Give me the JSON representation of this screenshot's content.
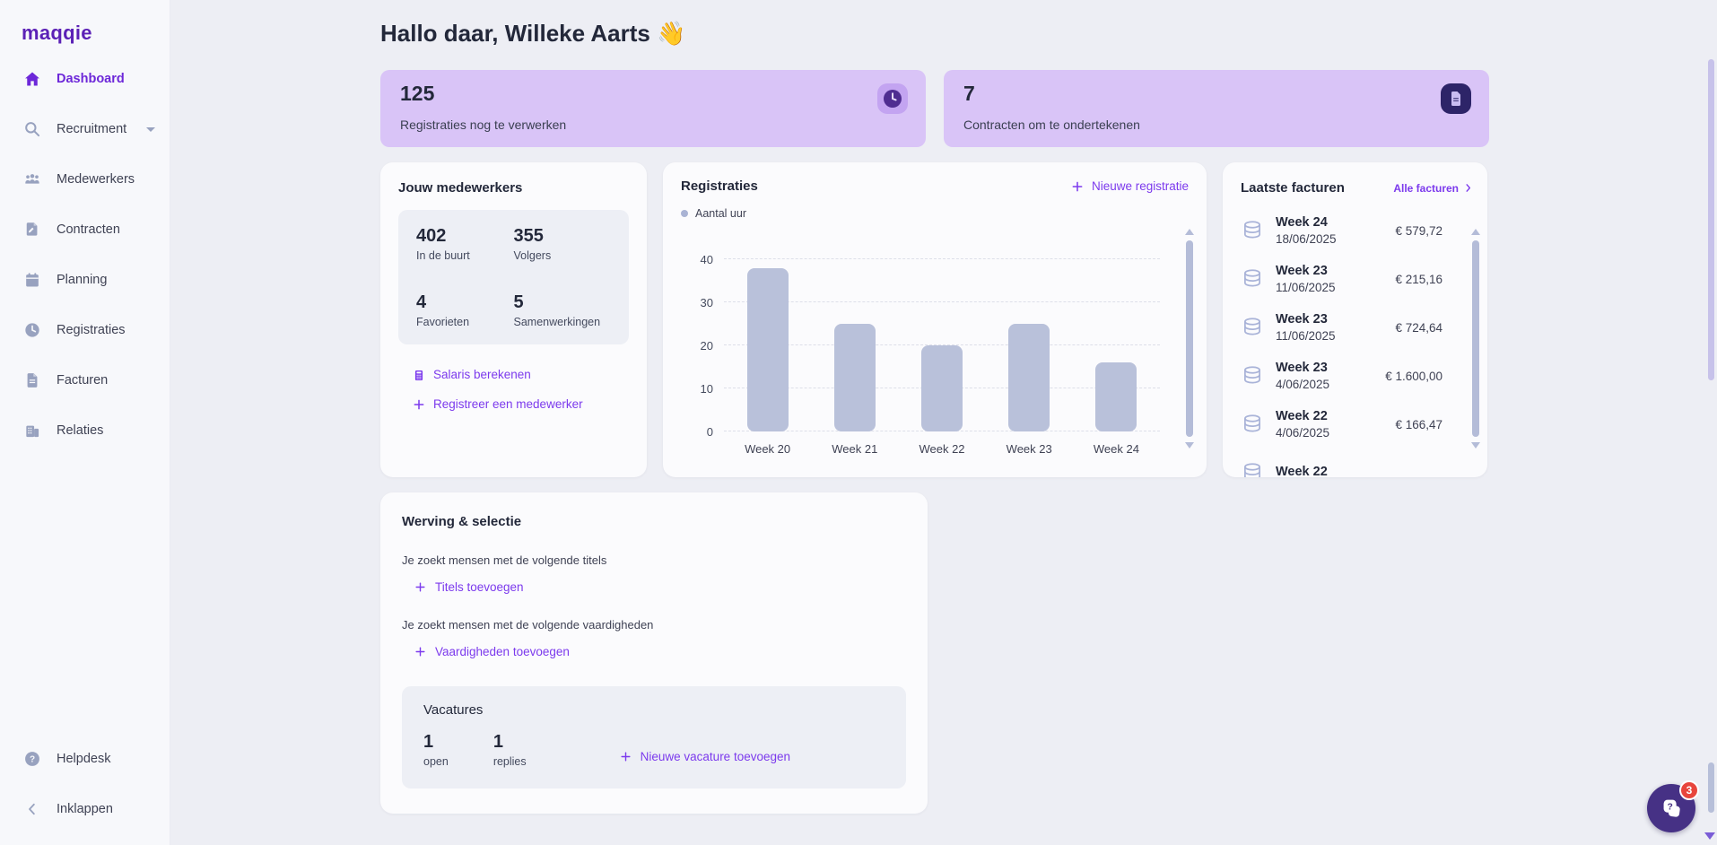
{
  "brand": {
    "logo": "maqqie"
  },
  "sidebar": {
    "items": [
      {
        "label": "Dashboard",
        "icon": "home-icon",
        "active": true
      },
      {
        "label": "Recruitment",
        "icon": "search-icon",
        "has_submenu": true
      },
      {
        "label": "Medewerkers",
        "icon": "people-icon"
      },
      {
        "label": "Contracten",
        "icon": "contract-icon"
      },
      {
        "label": "Planning",
        "icon": "calendar-icon"
      },
      {
        "label": "Registraties",
        "icon": "clock-icon"
      },
      {
        "label": "Facturen",
        "icon": "invoice-icon"
      },
      {
        "label": "Relaties",
        "icon": "building-icon"
      }
    ],
    "footer": [
      {
        "label": "Helpdesk",
        "icon": "question-icon"
      },
      {
        "label": "Inklappen",
        "icon": "chevron-left-icon"
      }
    ]
  },
  "header": {
    "greeting": "Hallo daar, Willeke Aarts 👋"
  },
  "stat_cards": [
    {
      "value": "125",
      "label": "Registraties nog te verwerken",
      "icon": "clock-icon"
    },
    {
      "value": "7",
      "label": "Contracten om te ondertekenen",
      "icon": "document-icon"
    }
  ],
  "employees": {
    "title": "Jouw medewerkers",
    "stats": [
      {
        "value": "402",
        "label": "In de buurt"
      },
      {
        "value": "355",
        "label": "Volgers"
      },
      {
        "value": "4",
        "label": "Favorieten"
      },
      {
        "value": "5",
        "label": "Samenwerkingen"
      }
    ],
    "links": [
      {
        "label": "Salaris berekenen",
        "icon": "calculator-icon"
      },
      {
        "label": "Registreer een medewerker",
        "icon": "plus-icon"
      }
    ]
  },
  "registrations": {
    "title": "Registraties",
    "action_label": "Nieuwe registratie",
    "legend": "Aantal uur"
  },
  "chart_data": {
    "type": "bar",
    "title": "Registraties",
    "categories": [
      "Week 20",
      "Week 21",
      "Week 22",
      "Week 23",
      "Week 24"
    ],
    "values": [
      38,
      25,
      20,
      25,
      16
    ],
    "series_name": "Aantal uur",
    "xlabel": "",
    "ylabel": "",
    "ylim": [
      0,
      40
    ],
    "yticks": [
      0,
      10,
      20,
      30,
      40
    ],
    "grid": "horizontal-dashed",
    "legend_position": "top-left",
    "bar_color": "#b9c1da"
  },
  "invoices": {
    "title": "Laatste facturen",
    "action_label": "Alle facturen",
    "rows": [
      {
        "week": "Week 24",
        "date": "18/06/2025",
        "amount": "€ 579,72"
      },
      {
        "week": "Week 23",
        "date": "11/06/2025",
        "amount": "€ 215,16"
      },
      {
        "week": "Week 23",
        "date": "11/06/2025",
        "amount": "€ 724,64"
      },
      {
        "week": "Week 23",
        "date": "4/06/2025",
        "amount": "€ 1.600,00"
      },
      {
        "week": "Week 22",
        "date": "4/06/2025",
        "amount": "€ 166,47"
      },
      {
        "week": "Week 22",
        "date": "",
        "amount": ""
      }
    ]
  },
  "recruitment": {
    "title": "Werving & selectie",
    "titles_label": "Je zoekt mensen met de volgende titels",
    "titles_action": "Titels toevoegen",
    "skills_label": "Je zoekt mensen met de volgende vaardigheden",
    "skills_action": "Vaardigheden toevoegen",
    "vacancies": {
      "title": "Vacatures",
      "stats": [
        {
          "value": "1",
          "label": "open"
        },
        {
          "value": "1",
          "label": "replies"
        }
      ],
      "action": "Nieuwe vacature toevoegen"
    }
  },
  "chat": {
    "badge": "3"
  },
  "colors": {
    "accent": "#7c3aed",
    "brand": "#5b21b6",
    "stat_card_bg": "#d9c4f7",
    "bar": "#b9c1da",
    "badge": "#e8453c"
  }
}
